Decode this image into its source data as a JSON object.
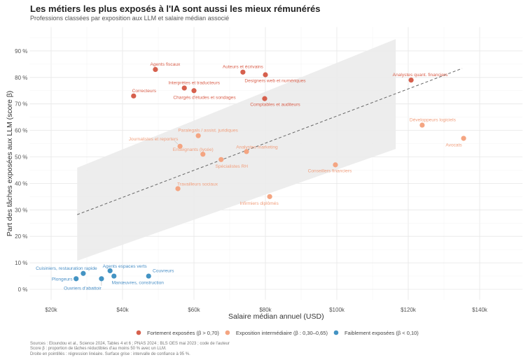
{
  "title": "Les métiers les plus exposés à l'IA sont aussi les mieux rémunérés",
  "subtitle": "Professions classées par exposition aux LLM et salaire médian associé",
  "notes": [
    "Sources : Eloundou et al., Science 2024, Tables 4 et 6 ; PNAS 2024 ; BLS OES mai 2023 ; code de l'auteur",
    "Score β : proportion de tâches réductibles d'au moins 50 % avec un LLM.",
    "Droite en pointillés : régression linéaire. Surface grise : intervalle de confiance à 95 %."
  ],
  "colors": {
    "high": "#d6604d",
    "mid": "#f4a582",
    "low": "#4393c3",
    "band": "#ebebeb",
    "grid": "#e6e6e6"
  },
  "chart_data": {
    "type": "scatter",
    "xlabel": "Salaire médian annuel (USD)",
    "ylabel": "Part des tâches exposées aux LLM (score β)",
    "xlim": [
      14,
      152
    ],
    "ylim": [
      -4,
      99
    ],
    "xticks": [
      20,
      40,
      60,
      80,
      100,
      120,
      140
    ],
    "xtick_labels": [
      "$20k",
      "$40k",
      "$60k",
      "$80k",
      "$100k",
      "$120k",
      "$140k"
    ],
    "yticks": [
      0,
      10,
      20,
      30,
      40,
      50,
      60,
      70,
      80,
      90
    ],
    "ytick_labels": [
      "0 %",
      "10 %",
      "20 %",
      "30 %",
      "40 %",
      "50 %",
      "60 %",
      "70 %",
      "80 %",
      "90 %"
    ],
    "grid": true,
    "legend_position": "bottom",
    "legend": [
      {
        "group": "high",
        "label": "Fortement exposées (β > 0,70)"
      },
      {
        "group": "mid",
        "label": "Exposition intermédiaire (β : 0,30–0,65)"
      },
      {
        "group": "low",
        "label": "Faiblement exposées (β < 0,10)"
      }
    ],
    "regression": {
      "x": [
        27.3,
        135.1
      ],
      "y": [
        28.2,
        83.4
      ]
    },
    "confidence_band": [
      {
        "x": 27.3,
        "lo": 10.8,
        "hi": 45.9
      },
      {
        "x": 116.5,
        "lo": 53.0,
        "hi": 94.5
      }
    ],
    "points": [
      {
        "label": "Agents fiscaux",
        "x": 49.2,
        "y": 83,
        "group": "high"
      },
      {
        "label": "Auteurs et écrivains",
        "x": 73.7,
        "y": 82,
        "group": "high"
      },
      {
        "label": "Designers web et numériques",
        "x": 80.0,
        "y": 81,
        "group": "high"
      },
      {
        "label": "Interprètes et traducteurs",
        "x": 57.3,
        "y": 76,
        "group": "high"
      },
      {
        "label": "Chargés d'études et sondages",
        "x": 60.0,
        "y": 75,
        "group": "high"
      },
      {
        "label": "Correcteurs",
        "x": 43.1,
        "y": 73,
        "group": "high"
      },
      {
        "label": "Comptables et auditeurs",
        "x": 79.8,
        "y": 72,
        "group": "high"
      },
      {
        "label": "Analystes quant. financiers",
        "x": 120.8,
        "y": 79,
        "group": "high"
      },
      {
        "label": "Paralegals / assist. juridiques",
        "x": 61.2,
        "y": 58,
        "group": "mid"
      },
      {
        "label": "Journalistes et reporters",
        "x": 56.1,
        "y": 54,
        "group": "mid"
      },
      {
        "label": "Enseignants (lycée)",
        "x": 62.5,
        "y": 51,
        "group": "mid"
      },
      {
        "label": "Analystes marketing",
        "x": 74.7,
        "y": 52,
        "group": "mid"
      },
      {
        "label": "Spécialistes RH",
        "x": 67.6,
        "y": 49,
        "group": "mid"
      },
      {
        "label": "Conseillers financiers",
        "x": 99.6,
        "y": 47,
        "group": "mid"
      },
      {
        "label": "Travailleurs sociaux",
        "x": 55.5,
        "y": 38,
        "group": "mid"
      },
      {
        "label": "Infirmiers diplômés",
        "x": 81.2,
        "y": 35,
        "group": "mid"
      },
      {
        "label": "Développeurs logiciels",
        "x": 123.9,
        "y": 62,
        "group": "mid"
      },
      {
        "label": "Avocats",
        "x": 135.5,
        "y": 57,
        "group": "mid"
      },
      {
        "label": "Cuisiniers, restauration rapide",
        "x": 29.0,
        "y": 6,
        "group": "low"
      },
      {
        "label": "Plongeurs",
        "x": 27.0,
        "y": 4,
        "group": "low"
      },
      {
        "label": "Agents espaces verts",
        "x": 36.5,
        "y": 7,
        "group": "low"
      },
      {
        "label": "Ouvriers d'abattoir",
        "x": 34.1,
        "y": 4,
        "group": "low"
      },
      {
        "label": "Manœuvres, construction",
        "x": 37.6,
        "y": 5,
        "group": "low"
      },
      {
        "label": "Couvreurs",
        "x": 47.3,
        "y": 5,
        "group": "low"
      }
    ]
  }
}
